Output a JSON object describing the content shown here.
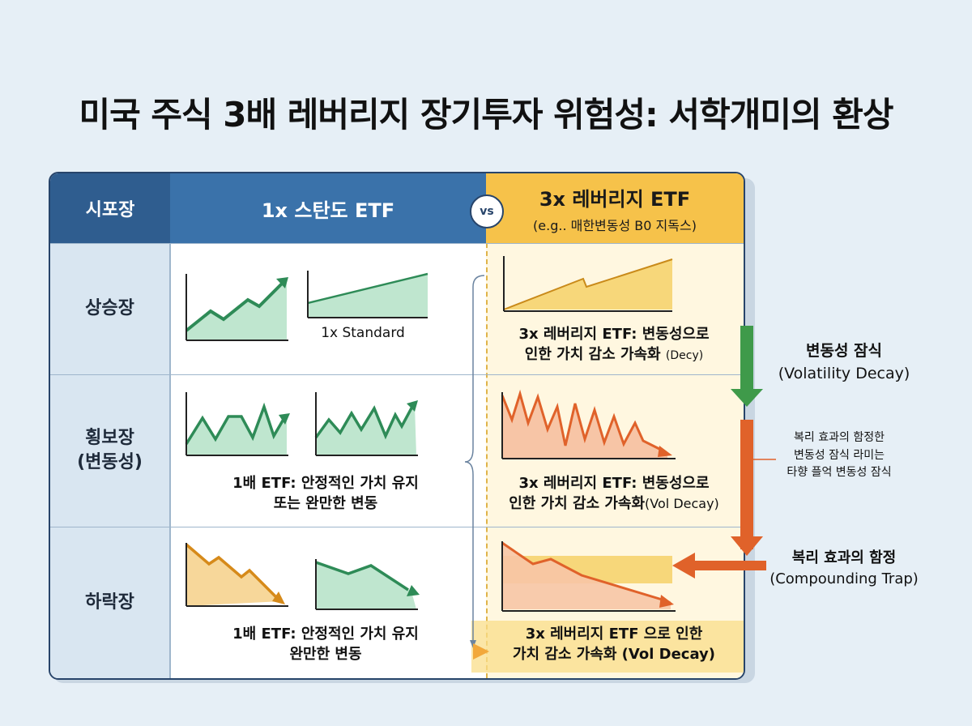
{
  "title": "미국 주식 3배 레버리지 장기투자 위험성: 서학개미의 환상",
  "header": {
    "market": "시포장",
    "col_1x": "1x 스탄도 ETF",
    "vs": "vs",
    "col_3x": "3x 레버리지 ETF",
    "col_3x_sub": "(e.g.. 매한변동성 B0 지독스)"
  },
  "rows": [
    {
      "label": "상승장",
      "label_1x_b": "1x Standard",
      "label_3x_line1": "3x 레버리지 ETF: 변동성으로",
      "label_3x_line2": "인한 가치 감소 가속화",
      "label_3x_small": "(Decy)"
    },
    {
      "label_line1": "횡보장",
      "label_line2": "(변동성)",
      "label_1x_line1": "1배 ETF: 안정적인 가치 유지",
      "label_1x_line2": "또는 완만한 변동",
      "label_3x_line1": "3x 레버리지 ETF: 변동성으로",
      "label_3x_line2": "인한 가치 감소 가속화",
      "label_3x_small": "(Vol Decay)"
    },
    {
      "label": "하락장",
      "label_1x_line1": "1배 ETF: 안정적인 가치 유지",
      "label_1x_line2": "완만한 변동",
      "label_3x_line1": "3x 레버리지 ETF 으로 인한",
      "label_3x_line2": "가치 감소 가속화 (Vol Decay)"
    }
  ],
  "side": {
    "decay_title": "변동성 잠식",
    "decay_en": "(Volatility Decay)",
    "note_line1": "복리 효과의 함정한",
    "note_line2": "변동성 잠식 라미는",
    "note_line3": "타향 플억 변동성 잠식",
    "trap_title": "복리 효과의 함정",
    "trap_en": "(Compounding Trap)"
  },
  "colors": {
    "navy": "#2f5d8f",
    "blue": "#3a72aa",
    "gold": "#f6c24a",
    "green_line": "#2e8b57",
    "green_fill": "#bfe6cf",
    "orange_line": "#e0622a",
    "orange_fill": "#f7c5a6",
    "yellow_fill": "#f7d77a",
    "arrow_green": "#3f9a4a",
    "arrow_orange": "#e0622a"
  }
}
